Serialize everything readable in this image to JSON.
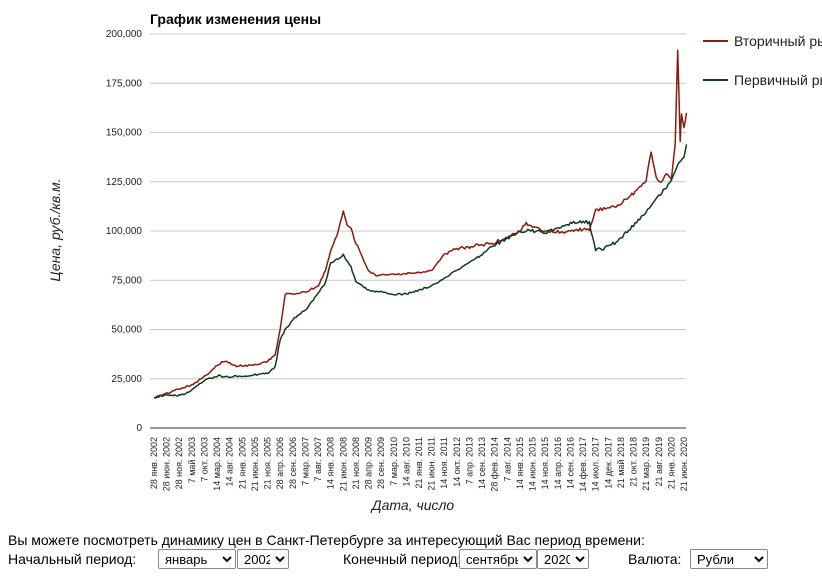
{
  "chart_data": {
    "type": "line",
    "title": "График изменения цены",
    "xlabel": "Дата, число",
    "ylabel": "Цена, руб./кв.м.",
    "ylim": [
      0,
      200000
    ],
    "y_ticks": [
      "0",
      "25,000",
      "50,000",
      "75,000",
      "100,000",
      "125,000",
      "150,000",
      "175,000",
      "200,000"
    ],
    "x_ticks": [
      "28 янв. 2002",
      "28 июн. 2002",
      "28 ноя. 2002",
      "7 май 2003",
      "7 окт. 2003",
      "14 мар. 2004",
      "14 авг. 2004",
      "21 янв. 2005",
      "21 июн. 2005",
      "21 ноя. 2005",
      "28 апр. 2006",
      "28 сен. 2006",
      "7 мар. 2007",
      "7 авг. 2007",
      "14 янв. 2008",
      "21 июн. 2008",
      "21 ноя. 2008",
      "28 апр. 2009",
      "28 сен. 2009",
      "7 мар. 2010",
      "14 авг. 2010",
      "21 янв. 2011",
      "21 июн. 2011",
      "14 ноя. 2011",
      "14 окт. 2012",
      "7 апр. 2013",
      "14 сен. 2013",
      "28 фев. 2014",
      "7 авг. 2014",
      "14 янв. 2015",
      "14 июн. 2015",
      "14 ноя. 2015",
      "14 апр. 2016",
      "14 сен. 2016",
      "14 фев. 2017",
      "14 июл. 2017",
      "14 дек. 2017",
      "21 май 2018",
      "21 окт. 2018",
      "21 мар. 2019",
      "21 авг. 2019",
      "21 янв. 2020",
      "21 июн. 2020"
    ],
    "legend_position": "right",
    "grid": true,
    "series": [
      {
        "name": "Вторичный рынок",
        "color": "#8b1a10",
        "points": [
          [
            0,
            15500
          ],
          [
            1,
            17500
          ],
          [
            2,
            20000
          ],
          [
            3,
            22000
          ],
          [
            4,
            26000
          ],
          [
            5,
            32000
          ],
          [
            5.6,
            34000
          ],
          [
            6,
            33000
          ],
          [
            6.4,
            31500
          ],
          [
            7,
            31500
          ],
          [
            8,
            32000
          ],
          [
            9,
            34000
          ],
          [
            9.6,
            37000
          ],
          [
            10,
            50000
          ],
          [
            10.4,
            68000
          ],
          [
            11,
            68000
          ],
          [
            12,
            69000
          ],
          [
            13,
            72000
          ],
          [
            13.6,
            80000
          ],
          [
            14,
            90000
          ],
          [
            14.6,
            100000
          ],
          [
            15,
            110000
          ],
          [
            15.3,
            103000
          ],
          [
            15.6,
            102000
          ],
          [
            16,
            94000
          ],
          [
            16.4,
            88000
          ],
          [
            17,
            80000
          ],
          [
            17.6,
            77000
          ],
          [
            18,
            77500
          ],
          [
            19,
            78000
          ],
          [
            20,
            78500
          ],
          [
            21,
            79000
          ],
          [
            22,
            80000
          ],
          [
            23,
            88000
          ],
          [
            24,
            91000
          ],
          [
            25,
            92000
          ],
          [
            26,
            93000
          ],
          [
            27,
            94000
          ],
          [
            28,
            97000
          ],
          [
            29,
            100000
          ],
          [
            29.5,
            104000
          ],
          [
            30,
            102000
          ],
          [
            31,
            100000
          ],
          [
            32,
            99500
          ],
          [
            33,
            100000
          ],
          [
            34,
            101000
          ],
          [
            34.5,
            100000
          ],
          [
            35,
            111000
          ],
          [
            36,
            111000
          ],
          [
            37,
            114000
          ],
          [
            38,
            119000
          ],
          [
            39,
            126000
          ],
          [
            39.4,
            140000
          ],
          [
            39.8,
            127000
          ],
          [
            40.2,
            125000
          ],
          [
            40.6,
            129000
          ],
          [
            41,
            127000
          ],
          [
            41.3,
            145000
          ],
          [
            41.5,
            192000
          ],
          [
            41.7,
            145000
          ],
          [
            41.8,
            160000
          ],
          [
            42,
            152000
          ],
          [
            42.2,
            160000
          ]
        ]
      },
      {
        "name": "Первичный рынок",
        "color": "#0f3b22",
        "points": [
          [
            0,
            15500
          ],
          [
            1,
            17000
          ],
          [
            2,
            16500
          ],
          [
            2.5,
            17500
          ],
          [
            3,
            19500
          ],
          [
            4,
            24000
          ],
          [
            5,
            26500
          ],
          [
            6,
            26000
          ],
          [
            7,
            26500
          ],
          [
            8,
            27000
          ],
          [
            9,
            28000
          ],
          [
            9.6,
            31000
          ],
          [
            10,
            45000
          ],
          [
            10.4,
            50000
          ],
          [
            11,
            55000
          ],
          [
            12,
            60000
          ],
          [
            13,
            68000
          ],
          [
            13.6,
            74000
          ],
          [
            14,
            84000
          ],
          [
            14.6,
            86000
          ],
          [
            15,
            88000
          ],
          [
            15.6,
            82000
          ],
          [
            16,
            74000
          ],
          [
            17,
            70000
          ],
          [
            18,
            69000
          ],
          [
            19,
            68000
          ],
          [
            20,
            68000
          ],
          [
            21,
            70000
          ],
          [
            22,
            72000
          ],
          [
            23,
            76000
          ],
          [
            24,
            80000
          ],
          [
            25,
            84000
          ],
          [
            26,
            88000
          ],
          [
            27,
            93000
          ],
          [
            28,
            96000
          ],
          [
            29,
            100000
          ],
          [
            30,
            100000
          ],
          [
            31,
            99000
          ],
          [
            32,
            101000
          ],
          [
            33,
            104000
          ],
          [
            34,
            105000
          ],
          [
            34.5,
            104000
          ],
          [
            35,
            90000
          ],
          [
            36,
            92000
          ],
          [
            37,
            96000
          ],
          [
            38,
            103000
          ],
          [
            39,
            110000
          ],
          [
            40,
            118000
          ],
          [
            41,
            125000
          ],
          [
            41.5,
            133000
          ],
          [
            42,
            138000
          ],
          [
            42.2,
            144000
          ]
        ]
      }
    ]
  },
  "controls": {
    "info_text": "Вы можете посмотреть динамику цен в Санкт-Петербурге за интересующий Вас период времени:",
    "start_label": "Начальный период:",
    "start_month": "январь",
    "start_year": "2002",
    "end_label": "Конечный период:",
    "end_month": "сентябрь",
    "end_year": "2020",
    "currency_label": "Валюта:",
    "currency": "Рубли"
  }
}
